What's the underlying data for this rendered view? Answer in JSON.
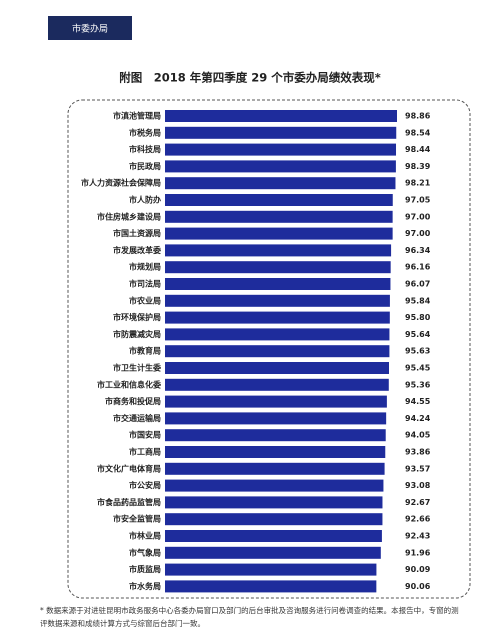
{
  "header": {
    "tab": "市委办局"
  },
  "chart_data": {
    "type": "bar",
    "orientation": "horizontal",
    "title": "附图　2018 年第四季度 29 个市委办局绩效表现*",
    "categories": [
      "市滇池管理局",
      "市税务局",
      "市科技局",
      "市民政局",
      "市人力资源社会保障局",
      "市人防办",
      "市住房城乡建设局",
      "市国土资源局",
      "市发展改革委",
      "市规划局",
      "市司法局",
      "市农业局",
      "市环境保护局",
      "市防震减灾局",
      "市教育局",
      "市卫生计生委",
      "市工业和信息化委",
      "市商务和投促局",
      "市交通运输局",
      "市国安局",
      "市工商局",
      "市文化广电体育局",
      "市公安局",
      "市食品药品监管局",
      "市安全监管局",
      "市林业局",
      "市气象局",
      "市质监局",
      "市水务局"
    ],
    "values": [
      98.86,
      98.54,
      98.44,
      98.39,
      98.21,
      97.05,
      97.0,
      97.0,
      96.34,
      96.16,
      96.07,
      95.84,
      95.8,
      95.64,
      95.63,
      95.45,
      95.36,
      94.55,
      94.24,
      94.05,
      93.86,
      93.57,
      93.08,
      92.67,
      92.66,
      92.43,
      91.96,
      90.09,
      90.06
    ],
    "value_labels": [
      "98.86",
      "98.54",
      "98.44",
      "98.39",
      "98.21",
      "97.05",
      "97.00",
      "97.00",
      "96.34",
      "96.16",
      "96.07",
      "95.84",
      "95.80",
      "95.64",
      "95.63",
      "95.45",
      "95.36",
      "94.55",
      "94.24",
      "94.05",
      "93.86",
      "93.57",
      "93.08",
      "92.67",
      "92.66",
      "92.43",
      "91.96",
      "90.09",
      "90.06"
    ],
    "color": "#1e2c9c"
  },
  "footnote": "* 数据来源于对进驻昆明市政务服务中心各委办局窗口及部门的后台审批及咨询服务进行问卷调查的结果。本报告中，专窗的测评数据来源和成绩计算方式与综窗后台部门一致。"
}
